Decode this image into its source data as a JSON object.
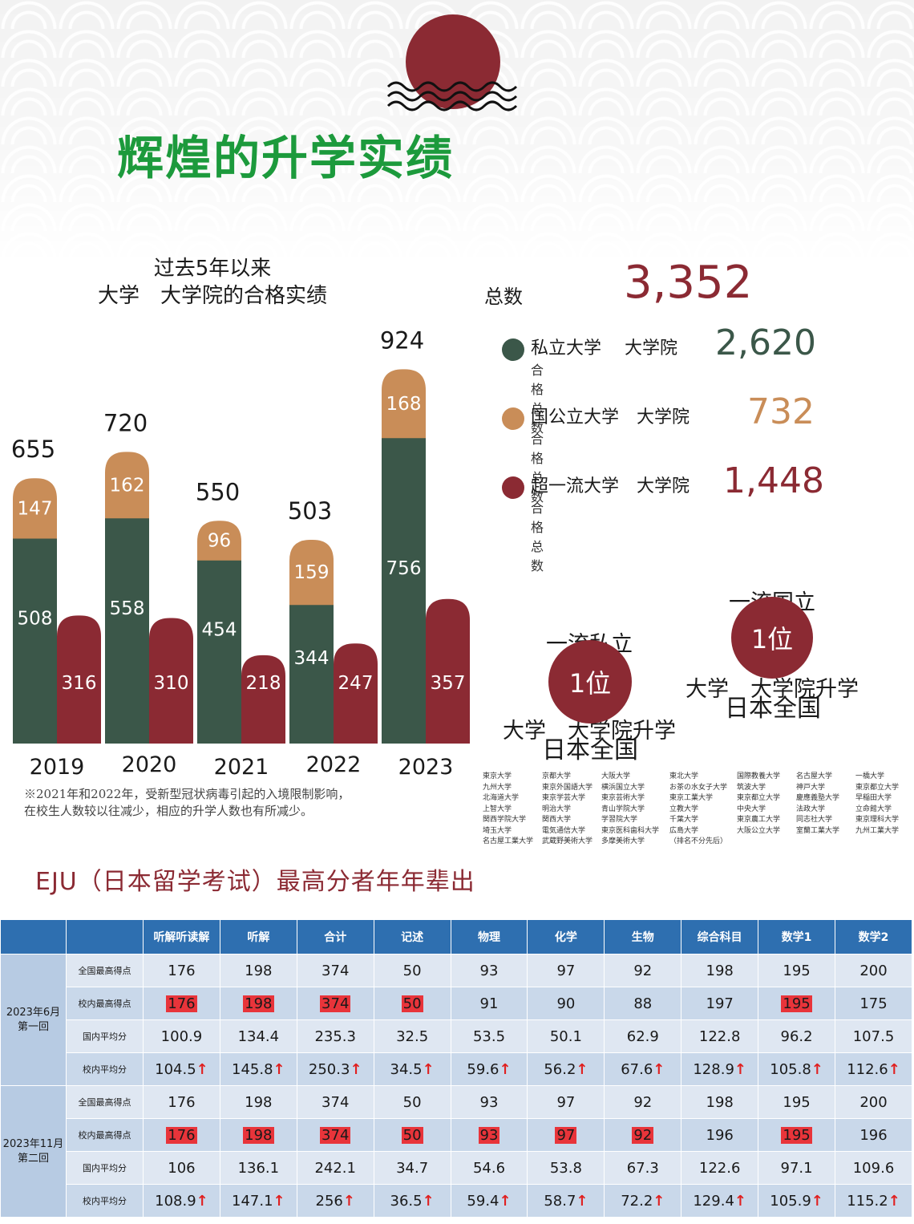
{
  "title": "辉煌的升学实绩",
  "chart_data": {
    "type": "bar",
    "title_lines": [
      "过去5年以来",
      "大学　大学院的合格实绩"
    ],
    "categories": [
      "2019",
      "2020",
      "2021",
      "2022",
      "2023"
    ],
    "series": [
      {
        "name": "私立大学　大学院",
        "values": [
          508,
          558,
          454,
          344,
          756
        ],
        "color": "#3b5749",
        "stack": "a"
      },
      {
        "name": "国公立大学　大学院",
        "values": [
          147,
          162,
          96,
          159,
          168
        ],
        "color": "#c98d58",
        "stack": "a"
      },
      {
        "name": "超一流大学　大学院",
        "values": [
          316,
          310,
          218,
          247,
          357
        ],
        "color": "#8b2a33",
        "stack": "b"
      }
    ],
    "totals": [
      655,
      720,
      550,
      503,
      924
    ]
  },
  "footnote": [
    "※2021年和2022年，受新型冠状病毒引起的入境限制影响，",
    "在校生人数较以往减少，相应的升学人数也有所减少。"
  ],
  "summary": {
    "total_label": "总数",
    "total_value": "3,352",
    "rows": [
      {
        "label": "私立大学　 大学院",
        "sub": "合格总数",
        "value": "2,620",
        "color": "#3b5749"
      },
      {
        "label": "国公立大学　大学院",
        "sub": "合格总数",
        "value": "732",
        "color": "#c98d58"
      },
      {
        "label": "超一流大学　大学院",
        "sub": "合格总数",
        "value": "1,448",
        "color": "#8b2a33"
      }
    ]
  },
  "rankings": {
    "private": {
      "title": [
        "一流私立",
        "大学　大学院升学"
      ],
      "rank": "1位",
      "scope": "日本全国"
    },
    "national": {
      "title": [
        "一流国立",
        "大学　大学院升学"
      ],
      "rank": "1位",
      "scope": "日本全国"
    }
  },
  "universities": [
    [
      "東京大学",
      "九州大学",
      "北海道大学",
      "上智大学",
      "関西学院大学",
      "埼玉大学",
      "名古屋工業大学"
    ],
    [
      "京都大学",
      "東京外国語大学",
      "東京学芸大学",
      "明治大学",
      "関西大学",
      "電気通信大学",
      "武蔵野美術大学"
    ],
    [
      "大阪大学",
      "横浜国立大学",
      "東京芸術大学",
      "青山学院大学",
      "学習院大学",
      "東京医科歯科大学",
      "多摩美術大学"
    ],
    [
      "東北大学",
      "お茶の水女子大学",
      "東京工業大学",
      "立教大学",
      "千葉大学",
      "広島大学",
      "（排名不分先后）"
    ],
    [
      "国際教養大学",
      "筑波大学",
      "東京都立大学",
      "中央大学",
      "東京農工大学",
      "大阪公立大学"
    ],
    [
      "名古屋大学",
      "神戸大学",
      "慶應義塾大学",
      "法政大学",
      "同志社大学",
      "室蘭工業大学"
    ],
    [
      "一橋大学",
      "東京都立大学",
      "早稲田大学",
      "立命館大学",
      "東京理科大学",
      "九州工業大学"
    ]
  ],
  "eju": {
    "title": "EJU（日本留学考试）最高分者年年辈出",
    "headers": [
      "听解听读解",
      "听解",
      "合计",
      "记述",
      "物理",
      "化学",
      "生物",
      "综合科目",
      "数学1",
      "数学2"
    ],
    "up_arrow": "↑",
    "sessions": [
      {
        "label": [
          "2023年6月",
          "第一回"
        ],
        "rows": [
          {
            "label": "全国最高得点",
            "values": [
              "176",
              "198",
              "374",
              "50",
              "93",
              "97",
              "92",
              "198",
              "195",
              "200"
            ],
            "highlight": [],
            "arrow": false
          },
          {
            "label": "校内最高得点",
            "values": [
              "176",
              "198",
              "374",
              "50",
              "91",
              "90",
              "88",
              "197",
              "195",
              "175"
            ],
            "highlight": [
              0,
              1,
              2,
              3,
              8
            ],
            "arrow": false
          },
          {
            "label": "国内平均分",
            "values": [
              "100.9",
              "134.4",
              "235.3",
              "32.5",
              "53.5",
              "50.1",
              "62.9",
              "122.8",
              "96.2",
              "107.5"
            ],
            "highlight": [],
            "arrow": false
          },
          {
            "label": "校内平均分",
            "values": [
              "104.5",
              "145.8",
              "250.3",
              "34.5",
              "59.6",
              "56.2",
              "67.6",
              "128.9",
              "105.8",
              "112.6"
            ],
            "highlight": [],
            "arrow": true
          }
        ]
      },
      {
        "label": [
          "2023年11月",
          "第二回"
        ],
        "rows": [
          {
            "label": "全国最高得点",
            "values": [
              "176",
              "198",
              "374",
              "50",
              "93",
              "97",
              "92",
              "198",
              "195",
              "200"
            ],
            "highlight": [],
            "arrow": false
          },
          {
            "label": "校内最高得点",
            "values": [
              "176",
              "198",
              "374",
              "50",
              "93",
              "97",
              "92",
              "196",
              "195",
              "196"
            ],
            "highlight": [
              0,
              1,
              2,
              3,
              4,
              5,
              6,
              8
            ],
            "arrow": false
          },
          {
            "label": "国内平均分",
            "values": [
              "106",
              "136.1",
              "242.1",
              "34.7",
              "54.6",
              "53.8",
              "67.3",
              "122.6",
              "97.1",
              "109.6"
            ],
            "highlight": [],
            "arrow": false
          },
          {
            "label": "校内平均分",
            "values": [
              "108.9",
              "147.1",
              "256",
              "36.5",
              "59.4",
              "58.7",
              "72.2",
              "129.4",
              "105.9",
              "115.2"
            ],
            "highlight": [],
            "arrow": true
          }
        ]
      }
    ]
  }
}
